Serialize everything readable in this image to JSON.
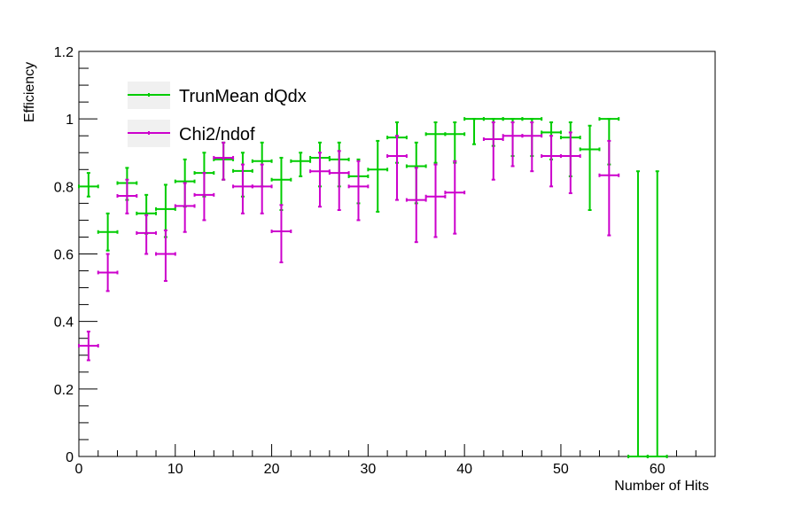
{
  "chart_data": {
    "type": "scatter",
    "xlabel": "Number of Hits",
    "ylabel": "Efficiency",
    "xlim": [
      0,
      66
    ],
    "ylim": [
      0,
      1.2
    ],
    "grid": false,
    "legend_position": "top-left",
    "x_ticks": [
      "0",
      "10",
      "20",
      "30",
      "40",
      "50",
      "60"
    ],
    "y_ticks": [
      "0",
      "0.2",
      "0.4",
      "0.6",
      "0.8",
      "1",
      "1.2"
    ],
    "series": [
      {
        "name": "TrunMean dQdx",
        "color": "#00cc00",
        "points": [
          {
            "x": 1,
            "xerr": 1,
            "y": 0.8,
            "ylo": 0.77,
            "yhi": 0.84
          },
          {
            "x": 3,
            "xerr": 1,
            "y": 0.665,
            "ylo": 0.61,
            "yhi": 0.72
          },
          {
            "x": 5,
            "xerr": 1,
            "y": 0.81,
            "ylo": 0.76,
            "yhi": 0.855
          },
          {
            "x": 7,
            "xerr": 1,
            "y": 0.72,
            "ylo": 0.66,
            "yhi": 0.775
          },
          {
            "x": 9,
            "xerr": 1,
            "y": 0.733,
            "ylo": 0.65,
            "yhi": 0.805
          },
          {
            "x": 11,
            "xerr": 1,
            "y": 0.815,
            "ylo": 0.74,
            "yhi": 0.88
          },
          {
            "x": 13,
            "xerr": 1,
            "y": 0.84,
            "ylo": 0.77,
            "yhi": 0.9
          },
          {
            "x": 15,
            "xerr": 1,
            "y": 0.88,
            "ylo": 0.82,
            "yhi": 0.93
          },
          {
            "x": 17,
            "xerr": 1,
            "y": 0.846,
            "ylo": 0.77,
            "yhi": 0.9
          },
          {
            "x": 19,
            "xerr": 1,
            "y": 0.875,
            "ylo": 0.8,
            "yhi": 0.93
          },
          {
            "x": 21,
            "xerr": 1,
            "y": 0.82,
            "ylo": 0.73,
            "yhi": 0.885
          },
          {
            "x": 23,
            "xerr": 1,
            "y": 0.875,
            "ylo": 0.83,
            "yhi": 0.9
          },
          {
            "x": 25,
            "xerr": 1,
            "y": 0.885,
            "ylo": 0.8,
            "yhi": 0.93
          },
          {
            "x": 27,
            "xerr": 1,
            "y": 0.88,
            "ylo": 0.8,
            "yhi": 0.93
          },
          {
            "x": 29,
            "xerr": 1,
            "y": 0.83,
            "ylo": 0.75,
            "yhi": 0.88
          },
          {
            "x": 31,
            "xerr": 1,
            "y": 0.85,
            "ylo": 0.725,
            "yhi": 0.935
          },
          {
            "x": 33,
            "xerr": 1,
            "y": 0.945,
            "ylo": 0.87,
            "yhi": 0.99
          },
          {
            "x": 35,
            "xerr": 1,
            "y": 0.86,
            "ylo": 0.75,
            "yhi": 0.93
          },
          {
            "x": 37,
            "xerr": 1,
            "y": 0.955,
            "ylo": 0.87,
            "yhi": 0.99
          },
          {
            "x": 39,
            "xerr": 1,
            "y": 0.955,
            "ylo": 0.87,
            "yhi": 0.99
          },
          {
            "x": 41,
            "xerr": 1,
            "y": 1.0,
            "ylo": 0.925,
            "yhi": 1.0
          },
          {
            "x": 43,
            "xerr": 1,
            "y": 1.0,
            "ylo": 0.92,
            "yhi": 1.0
          },
          {
            "x": 45,
            "xerr": 1,
            "y": 1.0,
            "ylo": 0.89,
            "yhi": 1.0
          },
          {
            "x": 47,
            "xerr": 1,
            "y": 1.0,
            "ylo": 0.89,
            "yhi": 1.0
          },
          {
            "x": 49,
            "xerr": 1,
            "y": 0.96,
            "ylo": 0.88,
            "yhi": 0.99
          },
          {
            "x": 51,
            "xerr": 1,
            "y": 0.945,
            "ylo": 0.83,
            "yhi": 0.99
          },
          {
            "x": 53,
            "xerr": 1,
            "y": 0.91,
            "ylo": 0.73,
            "yhi": 0.98
          },
          {
            "x": 55,
            "xerr": 1,
            "y": 1.0,
            "ylo": 0.865,
            "yhi": 1.0
          },
          {
            "x": 58,
            "xerr": 1,
            "y": 0.0,
            "ylo": 0.0,
            "yhi": 0.845
          },
          {
            "x": 60,
            "xerr": 1,
            "y": 0.0,
            "ylo": 0.0,
            "yhi": 0.845
          }
        ]
      },
      {
        "name": "Chi2/ndof",
        "color": "#cc00cc",
        "points": [
          {
            "x": 1,
            "xerr": 1,
            "y": 0.328,
            "ylo": 0.285,
            "yhi": 0.37
          },
          {
            "x": 3,
            "xerr": 1,
            "y": 0.545,
            "ylo": 0.49,
            "yhi": 0.6
          },
          {
            "x": 5,
            "xerr": 1,
            "y": 0.772,
            "ylo": 0.72,
            "yhi": 0.82
          },
          {
            "x": 7,
            "xerr": 1,
            "y": 0.662,
            "ylo": 0.6,
            "yhi": 0.715
          },
          {
            "x": 9,
            "xerr": 1,
            "y": 0.6,
            "ylo": 0.52,
            "yhi": 0.67
          },
          {
            "x": 11,
            "xerr": 1,
            "y": 0.742,
            "ylo": 0.665,
            "yhi": 0.81
          },
          {
            "x": 13,
            "xerr": 1,
            "y": 0.775,
            "ylo": 0.7,
            "yhi": 0.84
          },
          {
            "x": 15,
            "xerr": 1,
            "y": 0.885,
            "ylo": 0.82,
            "yhi": 0.93
          },
          {
            "x": 17,
            "xerr": 1,
            "y": 0.8,
            "ylo": 0.72,
            "yhi": 0.865
          },
          {
            "x": 19,
            "xerr": 1,
            "y": 0.8,
            "ylo": 0.72,
            "yhi": 0.865
          },
          {
            "x": 21,
            "xerr": 1,
            "y": 0.667,
            "ylo": 0.575,
            "yhi": 0.745
          },
          {
            "x": 25,
            "xerr": 1,
            "y": 0.845,
            "ylo": 0.74,
            "yhi": 0.9
          },
          {
            "x": 27,
            "xerr": 1,
            "y": 0.84,
            "ylo": 0.73,
            "yhi": 0.905
          },
          {
            "x": 29,
            "xerr": 1,
            "y": 0.8,
            "ylo": 0.7,
            "yhi": 0.875
          },
          {
            "x": 33,
            "xerr": 1,
            "y": 0.89,
            "ylo": 0.76,
            "yhi": 0.95
          },
          {
            "x": 35,
            "xerr": 1,
            "y": 0.76,
            "ylo": 0.635,
            "yhi": 0.855
          },
          {
            "x": 37,
            "xerr": 1,
            "y": 0.77,
            "ylo": 0.65,
            "yhi": 0.865
          },
          {
            "x": 39,
            "xerr": 1,
            "y": 0.782,
            "ylo": 0.66,
            "yhi": 0.875
          },
          {
            "x": 43,
            "xerr": 1,
            "y": 0.94,
            "ylo": 0.82,
            "yhi": 0.99
          },
          {
            "x": 45,
            "xerr": 1,
            "y": 0.95,
            "ylo": 0.86,
            "yhi": 0.99
          },
          {
            "x": 47,
            "xerr": 1,
            "y": 0.95,
            "ylo": 0.845,
            "yhi": 0.99
          },
          {
            "x": 49,
            "xerr": 1,
            "y": 0.89,
            "ylo": 0.8,
            "yhi": 0.95
          },
          {
            "x": 51,
            "xerr": 1,
            "y": 0.89,
            "ylo": 0.78,
            "yhi": 0.96
          },
          {
            "x": 55,
            "xerr": 1,
            "y": 0.833,
            "ylo": 0.655,
            "yhi": 0.935
          }
        ]
      }
    ]
  }
}
